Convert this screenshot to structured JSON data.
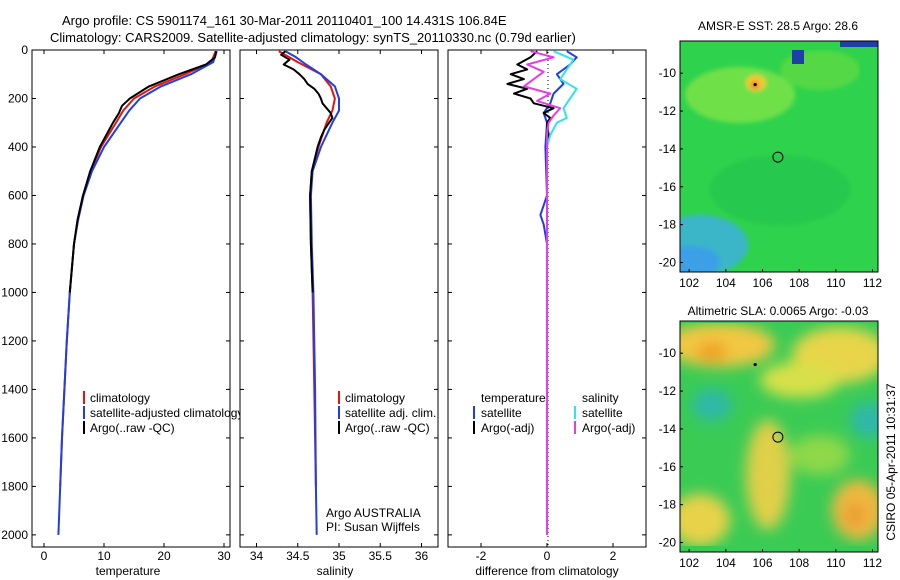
{
  "header": {
    "line1": "Argo profile: CS 5901174_161 30-Mar-2011 20110401_100 14.431S 106.84E",
    "line2": "Climatology: CARS2009. Satellite-adjusted climatology: synTS_20110330.nc (0.79d earlier)"
  },
  "side_label": "CSIRO 05-Apr-2011 10:31:37",
  "colors": {
    "climatology": "#e8140c",
    "satellite": "#1f3fe6",
    "argo": "#000000",
    "sal_satellite": "#30e4e8",
    "sal_argo": "#e83ce8"
  },
  "chart_data": [
    {
      "id": "temperature",
      "type": "line",
      "xlabel": "temperature",
      "xlim": [
        -2,
        31
      ],
      "ylim": [
        0,
        2050
      ],
      "xticks": [
        0,
        10,
        20,
        30
      ],
      "yticks": [
        0,
        200,
        400,
        600,
        800,
        1000,
        1200,
        1400,
        1600,
        1800,
        2000
      ],
      "ytick_labels": [
        "0",
        "200",
        "400",
        "600",
        "800",
        "1000",
        "1200",
        "1400",
        "1600",
        "1800",
        "2000"
      ],
      "series": [
        {
          "name": "climatology",
          "color": "#e8140c",
          "depth": [
            5,
            50,
            100,
            150,
            200,
            250,
            300,
            400,
            500,
            600,
            700,
            800,
            1000,
            1200,
            1400,
            1600,
            1800
          ],
          "values": [
            28.6,
            27.9,
            23.5,
            18.5,
            15.0,
            13.2,
            12.0,
            9.5,
            7.8,
            6.5,
            5.6,
            5.0,
            4.3,
            3.8,
            3.4,
            3.0,
            2.7
          ]
        },
        {
          "name": "satellite-adjusted climatology",
          "color": "#1f3fe6",
          "depth": [
            5,
            50,
            100,
            150,
            200,
            250,
            300,
            400,
            500,
            600,
            700,
            800,
            1000,
            1200,
            1400,
            1600,
            1800,
            2000
          ],
          "values": [
            28.8,
            28.2,
            24.5,
            19.5,
            16.0,
            14.2,
            12.8,
            10.0,
            8.0,
            6.6,
            5.7,
            5.0,
            4.3,
            3.8,
            3.4,
            3.0,
            2.7,
            2.4
          ]
        },
        {
          "name": "Argo(..raw -QC)",
          "color": "#000000",
          "depth": [
            5,
            30,
            60,
            100,
            150,
            200,
            230,
            260,
            300,
            400,
            500,
            600,
            700,
            800,
            1000
          ],
          "values": [
            28.7,
            28.5,
            27.0,
            22.5,
            17.5,
            14.3,
            13.0,
            12.5,
            11.5,
            9.3,
            7.7,
            6.5,
            5.6,
            5.0,
            4.3
          ]
        }
      ],
      "legend": [
        "climatology",
        "satellite-adjusted climatology",
        "Argo(..raw -QC)"
      ]
    },
    {
      "id": "salinity",
      "type": "line",
      "xlabel": "salinity",
      "xlim": [
        33.8,
        36.2
      ],
      "ylim": [
        0,
        2050
      ],
      "xticks": [
        34,
        34.5,
        35,
        35.5,
        36
      ],
      "xtick_labels": [
        "34",
        "34.5",
        "35",
        "35.5",
        "36"
      ],
      "series": [
        {
          "name": "climatology",
          "color": "#e8140c",
          "depth": [
            5,
            50,
            100,
            150,
            200,
            250,
            300,
            350,
            400,
            500,
            600,
            800,
            1000,
            1400,
            1800
          ],
          "values": [
            34.27,
            34.5,
            34.78,
            34.9,
            34.95,
            34.92,
            34.85,
            34.8,
            34.75,
            34.67,
            34.65,
            34.66,
            34.68,
            34.7,
            34.72
          ]
        },
        {
          "name": "satellite adj. clim.",
          "color": "#1f3fe6",
          "depth": [
            5,
            30,
            60,
            100,
            150,
            200,
            250,
            300,
            350,
            400,
            500,
            600,
            800,
            1000,
            1400,
            1800,
            2000
          ],
          "values": [
            34.35,
            34.48,
            34.6,
            34.78,
            34.95,
            35.0,
            35.0,
            34.92,
            34.85,
            34.78,
            34.68,
            34.66,
            34.67,
            34.69,
            34.71,
            34.72,
            34.73
          ]
        },
        {
          "name": "Argo(..raw -QC)",
          "color": "#000000",
          "depth": [
            5,
            20,
            40,
            60,
            80,
            100,
            120,
            140,
            160,
            180,
            200,
            220,
            240,
            260,
            280,
            300,
            330,
            360,
            400,
            500,
            600,
            800,
            1000
          ],
          "values": [
            34.35,
            34.3,
            34.4,
            34.33,
            34.45,
            34.52,
            34.58,
            34.62,
            34.7,
            34.75,
            34.78,
            34.8,
            34.85,
            34.9,
            34.92,
            34.88,
            34.82,
            34.78,
            34.74,
            34.67,
            34.65,
            34.66,
            34.68
          ]
        }
      ],
      "legend": [
        "climatology",
        "satellite adj. clim.",
        "Argo(..raw -QC)"
      ],
      "annotation": [
        "Argo AUSTRALIA",
        "PI: Susan Wijffels"
      ]
    },
    {
      "id": "difference",
      "type": "line",
      "xlabel": "difference from climatology",
      "xlim": [
        -3,
        3
      ],
      "ylim": [
        0,
        2050
      ],
      "xticks": [
        -2,
        0,
        2
      ],
      "series": [
        {
          "name": "temperature satellite",
          "color": "#1f3fe6",
          "depth": [
            5,
            30,
            60,
            100,
            140,
            180,
            220,
            260,
            300,
            400,
            600,
            680,
            720,
            800,
            1000,
            1400,
            2000
          ],
          "values": [
            0.6,
            0.9,
            0.7,
            0.3,
            0.5,
            0.2,
            0.1,
            -0.1,
            0.0,
            -0.05,
            0.0,
            -0.2,
            -0.1,
            0.0,
            0.0,
            0.0,
            0.0
          ]
        },
        {
          "name": "temperature Argo(-adj)",
          "color": "#000000",
          "depth": [
            5,
            30,
            60,
            80,
            100,
            120,
            140,
            160,
            180,
            200,
            220,
            240,
            260,
            280,
            300,
            350,
            400
          ],
          "values": [
            -0.3,
            -0.5,
            -0.9,
            -0.6,
            -1.1,
            -0.7,
            -1.2,
            -0.6,
            -1.0,
            -0.5,
            -0.4,
            0.2,
            -0.1,
            0.1,
            0.0,
            0.05,
            0.0
          ]
        },
        {
          "name": "salinity satellite",
          "color": "#30e4e8",
          "depth": [
            5,
            40,
            80,
            120,
            160,
            200,
            240,
            280,
            300,
            350,
            400,
            600,
            1000,
            2000
          ],
          "values": [
            0.2,
            0.8,
            0.6,
            0.4,
            0.9,
            0.7,
            0.5,
            0.6,
            0.3,
            0.1,
            0.0,
            0.0,
            0.0,
            0.0
          ]
        },
        {
          "name": "salinity Argo(-adj)",
          "color": "#e83ce8",
          "depth": [
            5,
            30,
            60,
            90,
            120,
            150,
            180,
            210,
            240,
            270,
            300,
            350,
            400,
            600,
            800,
            1000,
            1400,
            2000
          ],
          "values": [
            -0.5,
            0.2,
            -0.6,
            -0.1,
            -0.4,
            -0.7,
            0.1,
            -0.3,
            0.4,
            0.2,
            0.05,
            0.0,
            0.0,
            0.0,
            0.0,
            0.0,
            0.0,
            0.0
          ]
        }
      ],
      "legend_headers": [
        "temperature",
        "salinity"
      ],
      "legend_temperature": [
        "satellite",
        "Argo(-adj)"
      ],
      "legend_salinity": [
        "satellite",
        "Argo(-adj)"
      ]
    },
    {
      "id": "sst_map",
      "type": "heatmap",
      "title": "AMSR-E SST: 28.5  Argo: 28.6",
      "xticks": [
        102,
        104,
        106,
        108,
        110,
        112
      ],
      "yticks": [
        -10,
        -12,
        -14,
        -16,
        -18,
        -20
      ],
      "xlim": [
        101.5,
        112.3
      ],
      "ylim": [
        -20.5,
        -8.3
      ],
      "float_position": [
        106.84,
        -14.43
      ],
      "track_point": [
        105.6,
        -10.6
      ]
    },
    {
      "id": "sla_map",
      "type": "heatmap",
      "title": "Altimetric SLA: 0.0065  Argo: -0.03",
      "xticks": [
        102,
        104,
        106,
        108,
        110,
        112
      ],
      "yticks": [
        -10,
        -12,
        -14,
        -16,
        -18,
        -20
      ],
      "xlim": [
        101.5,
        112.3
      ],
      "ylim": [
        -20.5,
        -8.3
      ],
      "float_position": [
        106.84,
        -14.43
      ],
      "track_point": [
        105.6,
        -10.6
      ]
    }
  ]
}
